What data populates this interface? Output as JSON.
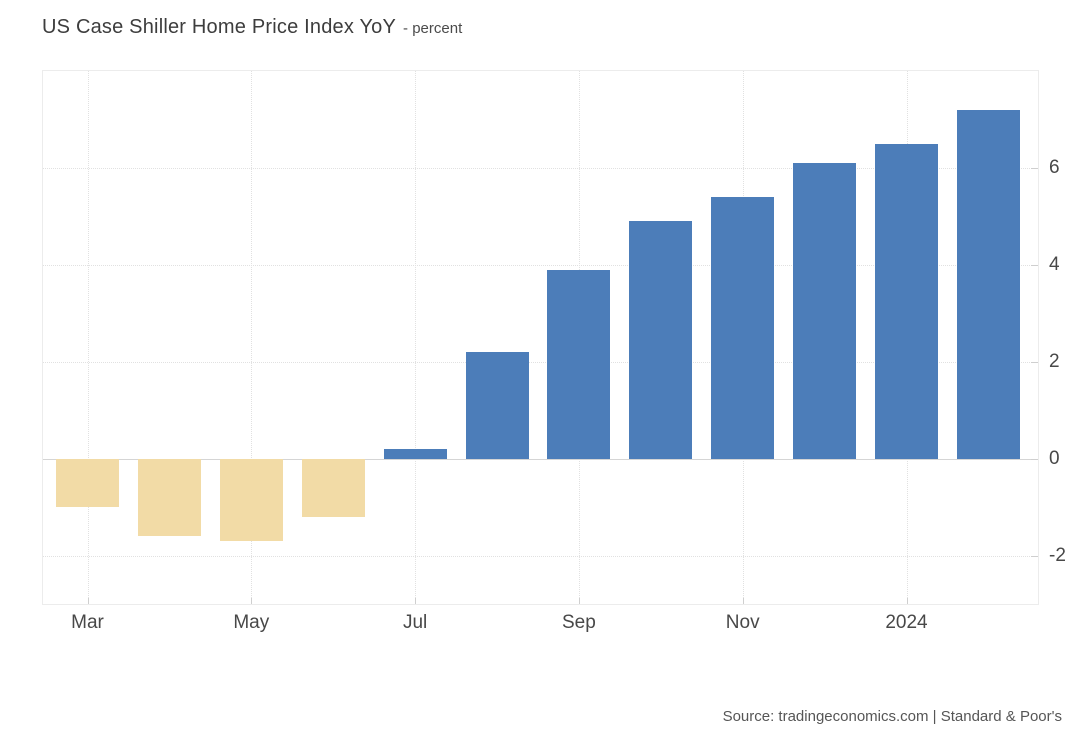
{
  "header": {
    "title": "US Case Shiller Home Price Index YoY",
    "subtitle": "- percent"
  },
  "footer": {
    "source": "Source: tradingeconomics.com | Standard & Poor's"
  },
  "chart_data": {
    "type": "bar",
    "title": "US Case Shiller Home Price Index YoY",
    "unit": "percent",
    "categories": [
      "Mar 2023",
      "Apr 2023",
      "May 2023",
      "Jun 2023",
      "Jul 2023",
      "Aug 2023",
      "Sep 2023",
      "Oct 2023",
      "Nov 2023",
      "Dec 2023",
      "Jan 2024",
      "Feb 2024"
    ],
    "values": [
      -1.0,
      -1.6,
      -1.7,
      -1.2,
      0.2,
      2.2,
      3.9,
      4.9,
      5.4,
      6.1,
      6.5,
      7.2
    ],
    "xlabel": "",
    "ylabel": "percent",
    "ylim": [
      -3,
      8
    ],
    "y_ticks": [
      6,
      4,
      2,
      0,
      -2
    ],
    "x_tick_labels": [
      "Mar",
      "May",
      "Jul",
      "Sep",
      "Nov",
      "2024"
    ],
    "x_tick_indices": [
      0,
      2,
      4,
      6,
      8,
      10
    ],
    "grid": true,
    "legend": false,
    "colors": {
      "positive_bar": "#4c7db9",
      "negative_bar": "#f2dba6",
      "gridline": "#e1e1e1",
      "zero_line": "#d5d5d5",
      "axis_text": "#484848",
      "title_text": "#3d3d3d"
    }
  }
}
